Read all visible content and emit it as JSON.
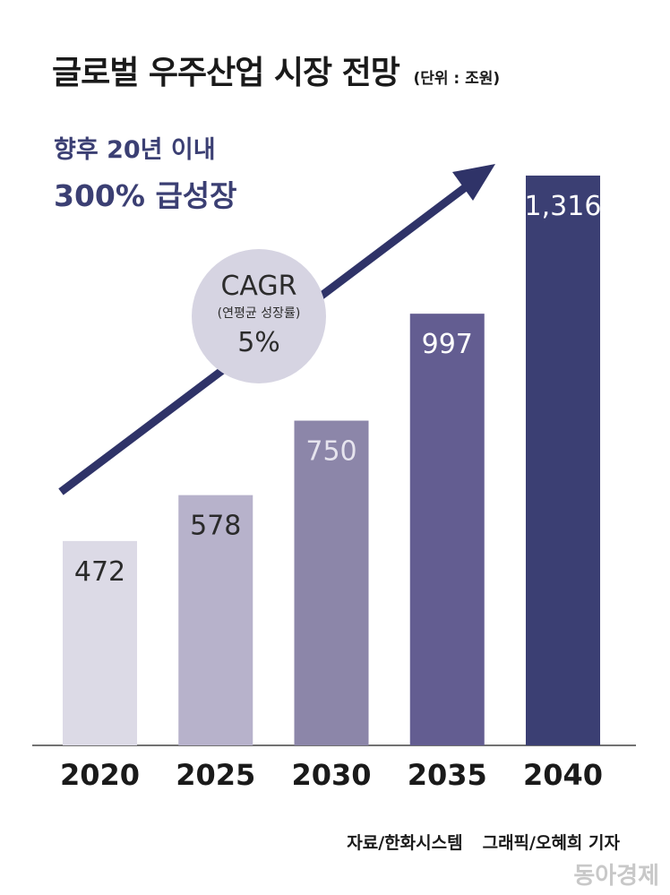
{
  "title": "글로벌 우주산업 시장 전망",
  "unit": "(단위 : 조원)",
  "headline": {
    "line1": "향후 20년 이내",
    "line2": "300% 급성장"
  },
  "cagr": {
    "label": "CAGR",
    "sub": "(연평균 성장률)",
    "value": "5%"
  },
  "source": {
    "data": "자료/한화시스템",
    "graphic": "그래픽/오혜희 기자"
  },
  "watermark": "동아경제",
  "chart_data": {
    "type": "bar",
    "categories": [
      "2020",
      "2025",
      "2030",
      "2035",
      "2040"
    ],
    "values": [
      472,
      578,
      750,
      997,
      1316
    ],
    "value_labels": [
      "472",
      "578",
      "750",
      "997",
      "1,316"
    ],
    "colors": [
      "#dcdae6",
      "#b7b2cb",
      "#8c86a9",
      "#635d91",
      "#3b3f73"
    ],
    "label_colors": [
      "#2a2a2a",
      "#2a2a2a",
      "#e6e4ee",
      "#ffffff",
      "#ffffff"
    ],
    "arrow_color": "#2f3368",
    "grid": false
  }
}
